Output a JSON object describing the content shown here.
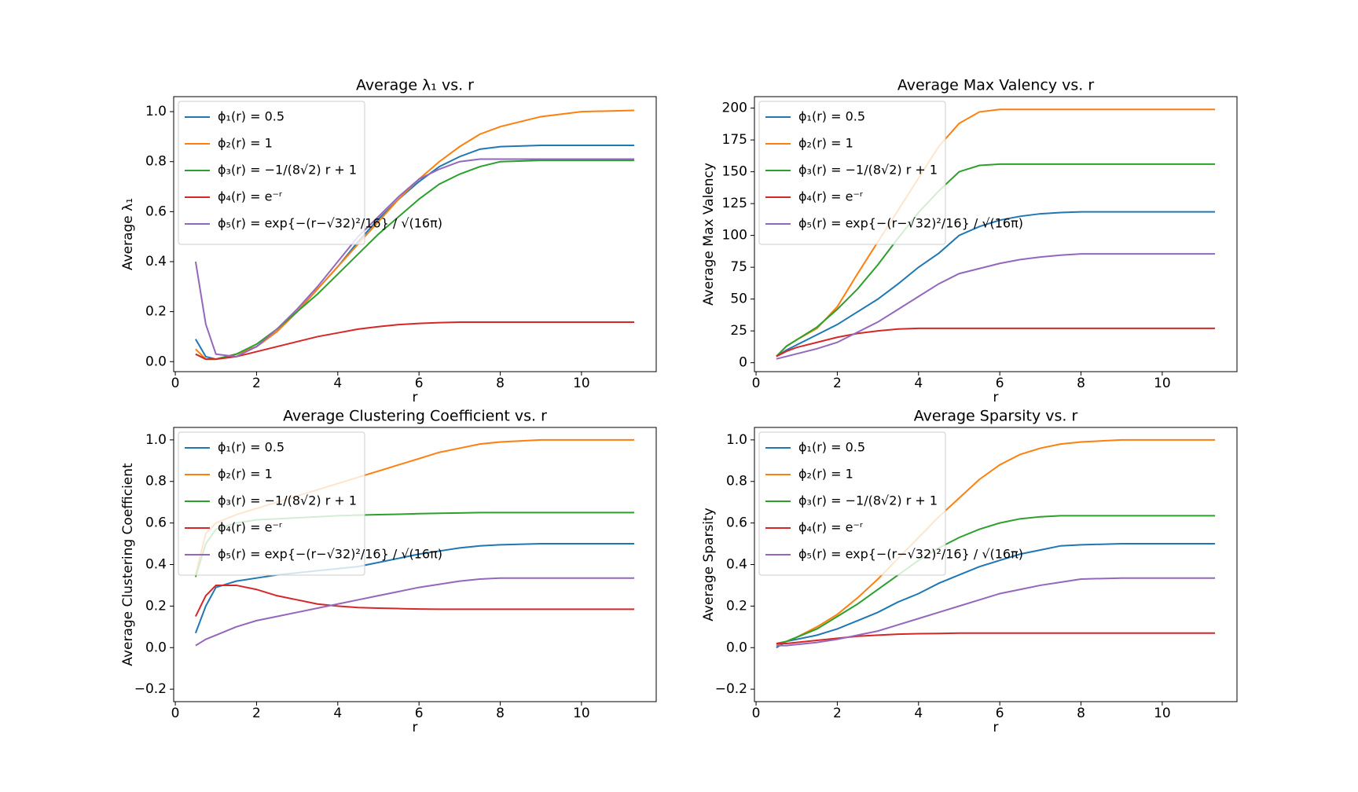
{
  "chart_data": [
    {
      "type": "line",
      "title": "Average λ₁ vs. r",
      "xlabel": "r",
      "ylabel": "Average λ₁",
      "legend": "upper left",
      "x": [
        0.5,
        0.75,
        1,
        1.5,
        2,
        2.5,
        3,
        3.5,
        4,
        4.5,
        5,
        5.5,
        6,
        6.5,
        7,
        7.5,
        8,
        9,
        10,
        11.3
      ],
      "xlim": [
        -0.04,
        11.84
      ],
      "ylim": [
        -0.04,
        1.06
      ],
      "xticks": [
        0,
        2,
        4,
        6,
        8,
        10
      ],
      "yticks": [
        {
          "value": 0,
          "label": "0.0"
        },
        {
          "value": 0.2,
          "label": "0.2"
        },
        {
          "value": 0.4,
          "label": "0.4"
        },
        {
          "value": 0.6,
          "label": "0.6"
        },
        {
          "value": 0.8,
          "label": "0.8"
        },
        {
          "value": 1,
          "label": "1.0"
        }
      ],
      "series": [
        {
          "name": "ϕ₁(r) = 0.5",
          "color": "#1f77b4",
          "values": [
            0.09,
            0.02,
            0.01,
            0.03,
            0.06,
            0.12,
            0.2,
            0.29,
            0.38,
            0.48,
            0.57,
            0.65,
            0.72,
            0.78,
            0.82,
            0.85,
            0.86,
            0.865,
            0.865,
            0.865
          ]
        },
        {
          "name": "ϕ₂(r) = 1",
          "color": "#ff7f0e",
          "values": [
            0.05,
            0.01,
            0.01,
            0.03,
            0.06,
            0.12,
            0.2,
            0.29,
            0.38,
            0.47,
            0.56,
            0.65,
            0.73,
            0.8,
            0.86,
            0.91,
            0.94,
            0.98,
            1.0,
            1.005
          ]
        },
        {
          "name": "ϕ₃(r) = −1/(8√2) r + 1",
          "color": "#2ca02c",
          "values": [
            0.03,
            0.01,
            0.01,
            0.03,
            0.07,
            0.13,
            0.2,
            0.27,
            0.35,
            0.43,
            0.51,
            0.58,
            0.65,
            0.71,
            0.75,
            0.78,
            0.8,
            0.805,
            0.805,
            0.805
          ]
        },
        {
          "name": "ϕ₄(r) = e⁻ʳ",
          "color": "#d62728",
          "values": [
            0.03,
            0.01,
            0.01,
            0.02,
            0.04,
            0.06,
            0.08,
            0.1,
            0.115,
            0.13,
            0.14,
            0.148,
            0.153,
            0.156,
            0.158,
            0.158,
            0.158,
            0.158,
            0.158,
            0.158
          ]
        },
        {
          "name": "ϕ₅(r) = exp{−(r−√32)²/16} / √(16π)",
          "color": "#9467bd",
          "values": [
            0.4,
            0.15,
            0.03,
            0.02,
            0.06,
            0.13,
            0.21,
            0.3,
            0.4,
            0.5,
            0.58,
            0.66,
            0.73,
            0.77,
            0.8,
            0.81,
            0.81,
            0.81,
            0.81,
            0.81
          ]
        }
      ]
    },
    {
      "type": "line",
      "title": "Average Max Valency vs. r",
      "xlabel": "r",
      "ylabel": "Average Max Valency",
      "legend": "upper left",
      "x": [
        0.5,
        0.75,
        1,
        1.5,
        2,
        2.5,
        3,
        3.5,
        4,
        4.5,
        5,
        5.5,
        6,
        6.5,
        7,
        7.5,
        8,
        9,
        10,
        11.3
      ],
      "xlim": [
        -0.04,
        11.84
      ],
      "ylim": [
        -7,
        209
      ],
      "xticks": [
        0,
        2,
        4,
        6,
        8,
        10
      ],
      "yticks": [
        0,
        25,
        50,
        75,
        100,
        125,
        150,
        175,
        200
      ],
      "series": [
        {
          "name": "ϕ₁(r) = 0.5",
          "color": "#1f77b4",
          "values": [
            5,
            10,
            14,
            22,
            30,
            40,
            50,
            62,
            75,
            86,
            100,
            107,
            112,
            115,
            117,
            118,
            118.5,
            118.5,
            118.5,
            118.5
          ]
        },
        {
          "name": "ϕ₂(r) = 1",
          "color": "#ff7f0e",
          "values": [
            5,
            13,
            18,
            27,
            44,
            70,
            95,
            120,
            145,
            170,
            188,
            197,
            199,
            199,
            199,
            199,
            199,
            199,
            199,
            199
          ]
        },
        {
          "name": "ϕ₃(r) = −1/(8√2) r + 1",
          "color": "#2ca02c",
          "values": [
            5,
            13,
            18,
            28,
            42,
            58,
            77,
            98,
            118,
            135,
            150,
            155,
            156,
            156,
            156,
            156,
            156,
            156,
            156,
            156
          ]
        },
        {
          "name": "ϕ₄(r) = e⁻ʳ",
          "color": "#d62728",
          "values": [
            5,
            9,
            12,
            16,
            20,
            23,
            25,
            26.5,
            27,
            27,
            27,
            27,
            27,
            27,
            27,
            27,
            27,
            27,
            27,
            27
          ]
        },
        {
          "name": "ϕ₅(r) = exp{−(r−√32)²/16} / √(16π)",
          "color": "#9467bd",
          "values": [
            3,
            5,
            7,
            11,
            16,
            24,
            32,
            42,
            52,
            62,
            70,
            74,
            78,
            81,
            83,
            84.5,
            85.5,
            85.5,
            85.5,
            85.5
          ]
        }
      ]
    },
    {
      "type": "line",
      "title": "Average Clustering Coefficient vs. r",
      "xlabel": "r",
      "ylabel": "Average Clustering Coefficient",
      "legend": "upper left",
      "x": [
        0.5,
        0.75,
        1,
        1.5,
        2,
        2.5,
        3,
        3.5,
        4,
        4.5,
        5,
        5.5,
        6,
        6.5,
        7,
        7.5,
        8,
        9,
        10,
        11.3
      ],
      "xlim": [
        -0.04,
        11.84
      ],
      "ylim": [
        -0.26,
        1.06
      ],
      "xticks": [
        0,
        2,
        4,
        6,
        8,
        10
      ],
      "yticks": [
        {
          "value": -0.2,
          "label": "−0.2"
        },
        {
          "value": 0,
          "label": "0.0"
        },
        {
          "value": 0.2,
          "label": "0.2"
        },
        {
          "value": 0.4,
          "label": "0.4"
        },
        {
          "value": 0.6,
          "label": "0.6"
        },
        {
          "value": 0.8,
          "label": "0.8"
        },
        {
          "value": 1,
          "label": "1.0"
        }
      ],
      "series": [
        {
          "name": "ϕ₁(r) = 0.5",
          "color": "#1f77b4",
          "values": [
            0.07,
            0.2,
            0.29,
            0.32,
            0.335,
            0.35,
            0.36,
            0.37,
            0.38,
            0.39,
            0.41,
            0.43,
            0.45,
            0.465,
            0.48,
            0.49,
            0.495,
            0.5,
            0.5,
            0.5
          ]
        },
        {
          "name": "ϕ₂(r) = 1",
          "color": "#ff7f0e",
          "values": [
            0.35,
            0.55,
            0.6,
            0.64,
            0.67,
            0.7,
            0.73,
            0.76,
            0.79,
            0.82,
            0.85,
            0.88,
            0.91,
            0.94,
            0.96,
            0.98,
            0.99,
            1.0,
            1.0,
            1.0
          ]
        },
        {
          "name": "ϕ₃(r) = −1/(8√2) r + 1",
          "color": "#2ca02c",
          "values": [
            0.34,
            0.5,
            0.57,
            0.6,
            0.615,
            0.62,
            0.625,
            0.63,
            0.635,
            0.638,
            0.64,
            0.642,
            0.645,
            0.647,
            0.648,
            0.65,
            0.65,
            0.65,
            0.65,
            0.65
          ]
        },
        {
          "name": "ϕ₄(r) = e⁻ʳ",
          "color": "#d62728",
          "values": [
            0.15,
            0.25,
            0.3,
            0.3,
            0.28,
            0.25,
            0.23,
            0.21,
            0.2,
            0.193,
            0.19,
            0.188,
            0.186,
            0.185,
            0.185,
            0.185,
            0.185,
            0.185,
            0.185,
            0.185
          ]
        },
        {
          "name": "ϕ₅(r) = exp{−(r−√32)²/16} / √(16π)",
          "color": "#9467bd",
          "values": [
            0.01,
            0.04,
            0.06,
            0.1,
            0.13,
            0.15,
            0.17,
            0.19,
            0.21,
            0.23,
            0.25,
            0.27,
            0.29,
            0.305,
            0.32,
            0.33,
            0.335,
            0.335,
            0.335,
            0.335
          ]
        }
      ]
    },
    {
      "type": "line",
      "title": "Average Sparsity vs. r",
      "xlabel": "r",
      "ylabel": "Average Sparsity",
      "legend": "upper left",
      "x": [
        0.5,
        0.75,
        1,
        1.5,
        2,
        2.5,
        3,
        3.5,
        4,
        4.5,
        5,
        5.5,
        6,
        6.5,
        7,
        7.5,
        8,
        9,
        10,
        11.3
      ],
      "xlim": [
        -0.04,
        11.84
      ],
      "ylim": [
        -0.26,
        1.06
      ],
      "xticks": [
        0,
        2,
        4,
        6,
        8,
        10
      ],
      "yticks": [
        {
          "value": -0.2,
          "label": "−0.2"
        },
        {
          "value": 0,
          "label": "0.0"
        },
        {
          "value": 0.2,
          "label": "0.2"
        },
        {
          "value": 0.4,
          "label": "0.4"
        },
        {
          "value": 0.6,
          "label": "0.6"
        },
        {
          "value": 0.8,
          "label": "0.8"
        },
        {
          "value": 1,
          "label": "1.0"
        }
      ],
      "series": [
        {
          "name": "ϕ₁(r) = 0.5",
          "color": "#1f77b4",
          "values": [
            0.0,
            0.03,
            0.04,
            0.06,
            0.09,
            0.13,
            0.17,
            0.22,
            0.26,
            0.31,
            0.35,
            0.39,
            0.42,
            0.45,
            0.47,
            0.49,
            0.495,
            0.5,
            0.5,
            0.5
          ]
        },
        {
          "name": "ϕ₂(r) = 1",
          "color": "#ff7f0e",
          "values": [
            0.01,
            0.03,
            0.05,
            0.1,
            0.16,
            0.24,
            0.33,
            0.43,
            0.53,
            0.63,
            0.72,
            0.81,
            0.88,
            0.93,
            0.96,
            0.98,
            0.99,
            1.0,
            1.0,
            1.0
          ]
        },
        {
          "name": "ϕ₃(r) = −1/(8√2) r + 1",
          "color": "#2ca02c",
          "values": [
            0.02,
            0.03,
            0.05,
            0.09,
            0.15,
            0.21,
            0.28,
            0.35,
            0.42,
            0.48,
            0.53,
            0.57,
            0.6,
            0.62,
            0.63,
            0.635,
            0.635,
            0.635,
            0.635,
            0.635
          ]
        },
        {
          "name": "ϕ₄(r) = e⁻ʳ",
          "color": "#d62728",
          "values": [
            0.02,
            0.02,
            0.025,
            0.035,
            0.045,
            0.055,
            0.06,
            0.065,
            0.067,
            0.068,
            0.07,
            0.07,
            0.07,
            0.07,
            0.07,
            0.07,
            0.07,
            0.07,
            0.07,
            0.07
          ]
        },
        {
          "name": "ϕ₅(r) = exp{−(r−√32)²/16} / √(16π)",
          "color": "#9467bd",
          "values": [
            0.01,
            0.01,
            0.015,
            0.025,
            0.04,
            0.06,
            0.08,
            0.11,
            0.14,
            0.17,
            0.2,
            0.23,
            0.26,
            0.28,
            0.3,
            0.315,
            0.33,
            0.335,
            0.335,
            0.335
          ]
        }
      ]
    }
  ]
}
